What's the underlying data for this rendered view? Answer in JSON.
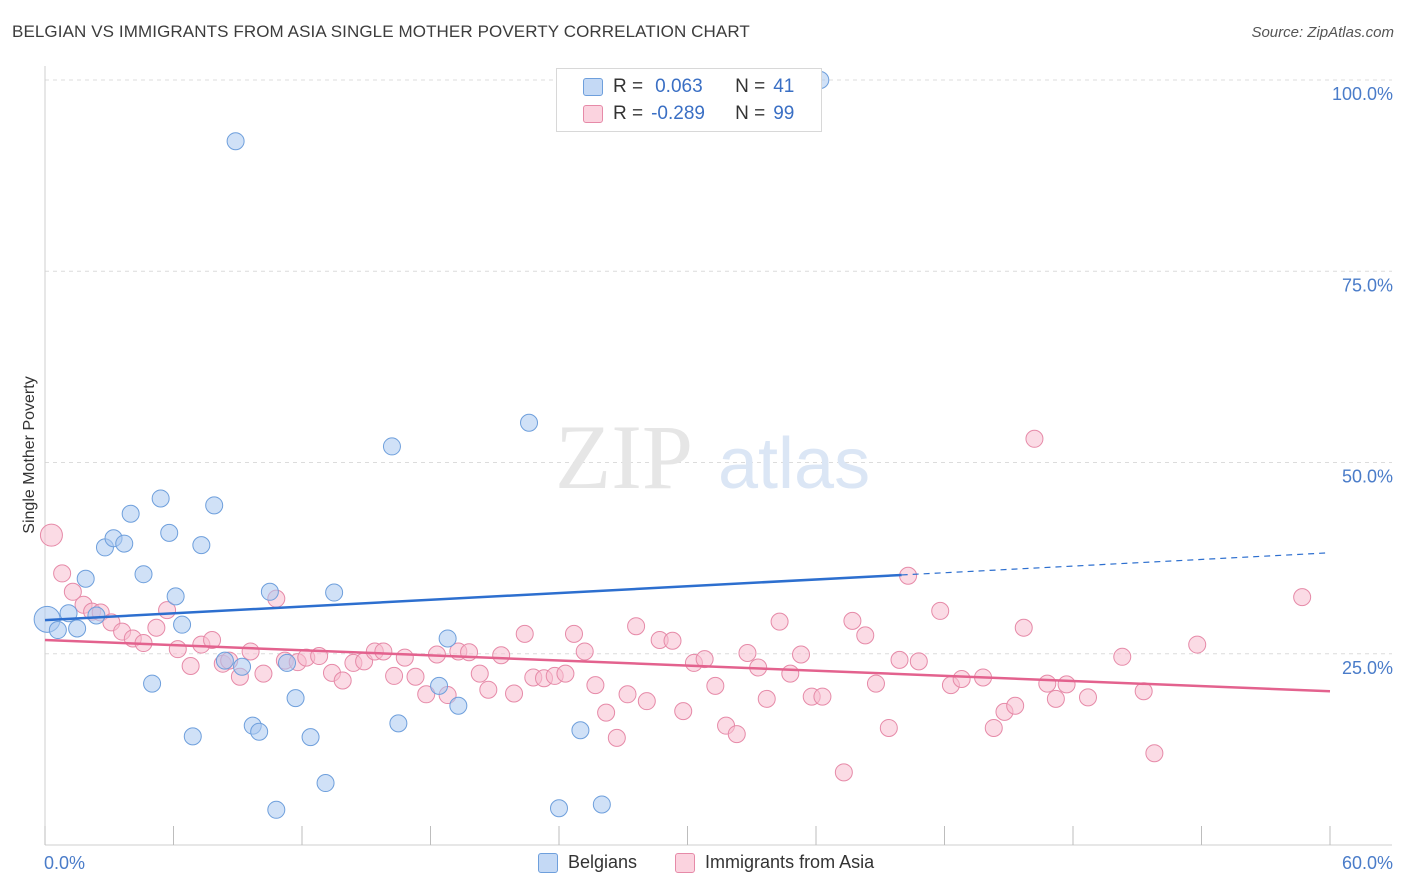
{
  "title": "BELGIAN VS IMMIGRANTS FROM ASIA SINGLE MOTHER POVERTY CORRELATION CHART",
  "source": "Source: ZipAtlas.com",
  "watermark": {
    "zip": "ZIP",
    "atlas": "atlas"
  },
  "legend": {
    "rows": [
      {
        "r_label": "R =",
        "r_value": "0.063",
        "n_label": "N =",
        "n_value": "41"
      },
      {
        "r_label": "R =",
        "r_value": "-0.289",
        "n_label": "N =",
        "n_value": "99"
      }
    ]
  },
  "bottom_legend": {
    "belgians": "Belgians",
    "asia": "Immigrants from Asia"
  },
  "colors": {
    "blue_fill": "#aac8f0",
    "blue_stroke": "#6e9fdc",
    "blue_line": "#2d6fcf",
    "pink_fill": "#f7bdd0",
    "pink_stroke": "#e68aa8",
    "pink_line": "#e3628e",
    "grid": "#dcdcdc",
    "tick_text": "#4a7cc9"
  },
  "chart_data": {
    "type": "scatter",
    "title": "BELGIAN VS IMMIGRANTS FROM ASIA SINGLE MOTHER POVERTY CORRELATION CHART",
    "xlabel": "",
    "ylabel": "Single Mother Poverty",
    "xlim": [
      0,
      60
    ],
    "ylim": [
      0,
      100
    ],
    "x_tick_labels": [
      "0.0%",
      "60.0%"
    ],
    "y_tick_labels": [
      "25.0%",
      "50.0%",
      "75.0%",
      "100.0%"
    ],
    "y_ticks": [
      25,
      50,
      75,
      100
    ],
    "grid": true,
    "legend_position": "top-center",
    "series": [
      {
        "name": "Belgians",
        "color": "#6e9fdc",
        "points": [
          [
            0.1,
            29.5
          ],
          [
            0.6,
            28.1
          ],
          [
            1.1,
            30.3
          ],
          [
            1.5,
            28.3
          ],
          [
            1.9,
            34.8
          ],
          [
            2.4,
            30.0
          ],
          [
            2.8,
            38.9
          ],
          [
            3.2,
            40.1
          ],
          [
            3.7,
            39.4
          ],
          [
            4.0,
            43.3
          ],
          [
            4.6,
            35.4
          ],
          [
            5.0,
            21.1
          ],
          [
            5.4,
            45.3
          ],
          [
            5.8,
            40.8
          ],
          [
            6.1,
            32.5
          ],
          [
            6.4,
            28.8
          ],
          [
            6.9,
            14.2
          ],
          [
            7.3,
            39.2
          ],
          [
            7.9,
            44.4
          ],
          [
            8.4,
            24.1
          ],
          [
            8.9,
            92.0
          ],
          [
            9.2,
            23.3
          ],
          [
            9.7,
            15.6
          ],
          [
            10.0,
            14.8
          ],
          [
            10.5,
            33.1
          ],
          [
            10.8,
            4.6
          ],
          [
            11.3,
            23.8
          ],
          [
            11.7,
            19.2
          ],
          [
            12.4,
            14.1
          ],
          [
            13.1,
            8.1
          ],
          [
            13.5,
            33.0
          ],
          [
            16.2,
            52.1
          ],
          [
            16.5,
            15.9
          ],
          [
            18.4,
            20.8
          ],
          [
            18.8,
            27.0
          ],
          [
            19.3,
            18.2
          ],
          [
            22.6,
            55.2
          ],
          [
            24.0,
            4.8
          ],
          [
            25.0,
            15.0
          ],
          [
            26.0,
            5.3
          ],
          [
            36.2,
            100.0
          ]
        ],
        "trend": {
          "x": [
            0,
            40
          ],
          "y": [
            29.4,
            35.3
          ],
          "dashed_to": [
            60,
            38.2
          ]
        }
      },
      {
        "name": "Immigrants from Asia",
        "color": "#e68aa8",
        "points": [
          [
            0.3,
            40.5
          ],
          [
            0.8,
            35.5
          ],
          [
            1.3,
            33.1
          ],
          [
            1.8,
            31.4
          ],
          [
            2.2,
            30.5
          ],
          [
            2.6,
            30.4
          ],
          [
            3.1,
            29.1
          ],
          [
            3.6,
            27.9
          ],
          [
            4.1,
            27.0
          ],
          [
            4.6,
            26.4
          ],
          [
            5.2,
            28.4
          ],
          [
            5.7,
            30.7
          ],
          [
            6.2,
            25.6
          ],
          [
            6.8,
            23.4
          ],
          [
            7.3,
            26.2
          ],
          [
            7.8,
            26.8
          ],
          [
            8.3,
            23.7
          ],
          [
            8.6,
            24.1
          ],
          [
            9.1,
            22.0
          ],
          [
            9.6,
            25.3
          ],
          [
            10.2,
            22.4
          ],
          [
            10.8,
            32.2
          ],
          [
            11.2,
            24.1
          ],
          [
            11.8,
            23.9
          ],
          [
            12.2,
            24.5
          ],
          [
            12.8,
            24.7
          ],
          [
            13.4,
            22.5
          ],
          [
            13.9,
            21.5
          ],
          [
            14.4,
            23.8
          ],
          [
            14.9,
            24.0
          ],
          [
            15.4,
            25.3
          ],
          [
            15.8,
            25.3
          ],
          [
            16.3,
            22.1
          ],
          [
            16.8,
            24.5
          ],
          [
            17.3,
            22.0
          ],
          [
            17.8,
            19.7
          ],
          [
            18.3,
            24.9
          ],
          [
            18.8,
            19.6
          ],
          [
            19.3,
            25.3
          ],
          [
            19.8,
            25.2
          ],
          [
            20.3,
            22.4
          ],
          [
            20.7,
            20.3
          ],
          [
            21.3,
            24.8
          ],
          [
            21.9,
            19.8
          ],
          [
            22.4,
            27.6
          ],
          [
            22.8,
            21.9
          ],
          [
            23.3,
            21.8
          ],
          [
            23.8,
            22.1
          ],
          [
            24.3,
            22.4
          ],
          [
            24.7,
            27.6
          ],
          [
            25.2,
            25.3
          ],
          [
            25.7,
            20.9
          ],
          [
            26.2,
            17.3
          ],
          [
            26.7,
            14.0
          ],
          [
            27.2,
            19.7
          ],
          [
            27.6,
            28.6
          ],
          [
            28.1,
            18.8
          ],
          [
            28.7,
            26.8
          ],
          [
            29.3,
            26.7
          ],
          [
            29.8,
            17.5
          ],
          [
            30.3,
            23.8
          ],
          [
            30.8,
            24.3
          ],
          [
            31.3,
            20.8
          ],
          [
            31.8,
            15.6
          ],
          [
            32.3,
            14.5
          ],
          [
            32.8,
            25.1
          ],
          [
            33.3,
            23.2
          ],
          [
            33.7,
            19.1
          ],
          [
            34.3,
            29.2
          ],
          [
            34.8,
            22.4
          ],
          [
            35.3,
            24.9
          ],
          [
            35.8,
            19.4
          ],
          [
            36.3,
            19.4
          ],
          [
            37.3,
            9.5
          ],
          [
            37.7,
            29.3
          ],
          [
            38.3,
            27.4
          ],
          [
            38.8,
            21.1
          ],
          [
            39.4,
            15.3
          ],
          [
            39.9,
            24.2
          ],
          [
            40.3,
            35.2
          ],
          [
            40.8,
            24.0
          ],
          [
            41.8,
            30.6
          ],
          [
            42.3,
            20.9
          ],
          [
            42.8,
            21.7
          ],
          [
            43.8,
            21.9
          ],
          [
            44.3,
            15.3
          ],
          [
            44.8,
            17.4
          ],
          [
            45.3,
            18.2
          ],
          [
            45.7,
            28.4
          ],
          [
            46.2,
            53.1
          ],
          [
            46.8,
            21.1
          ],
          [
            47.2,
            19.1
          ],
          [
            47.7,
            21.0
          ],
          [
            48.7,
            19.3
          ],
          [
            50.3,
            24.6
          ],
          [
            51.3,
            20.1
          ],
          [
            51.8,
            12.0
          ],
          [
            53.8,
            26.2
          ],
          [
            58.7,
            32.4
          ]
        ],
        "trend": {
          "x": [
            0,
            60
          ],
          "y": [
            26.8,
            20.1
          ]
        }
      }
    ]
  }
}
